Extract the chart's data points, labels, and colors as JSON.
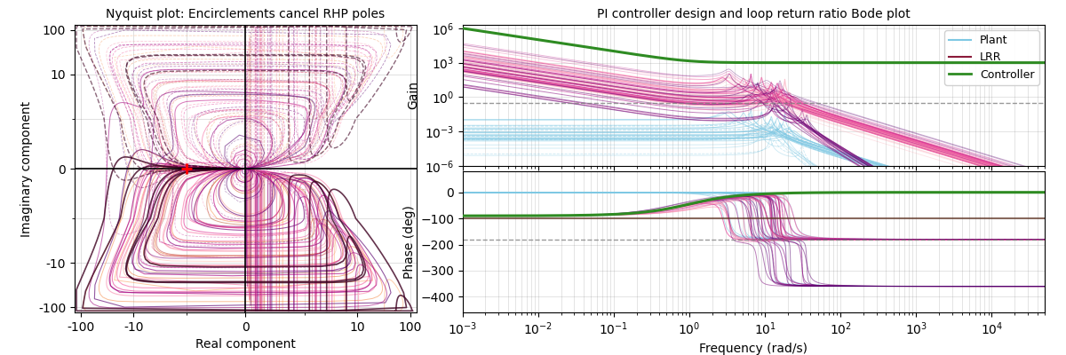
{
  "nyquist_title": "Nyquist plot: Encirclements cancel RHP poles",
  "bode_title": "PI controller design and loop return ratio Bode plot",
  "nyquist_xlabel": "Real component",
  "nyquist_ylabel": "Imaginary component",
  "bode_xlabel": "Frequency (rad/s)",
  "bode_ylabel_gain": "Gain",
  "bode_ylabel_phase": "Phase (deg)",
  "plant_color": "#7EC8E3",
  "controller_color": "#2E8B22",
  "gain_dashed_level": 0.3,
  "phase_dashed_level": -180.0,
  "phase_line2_level": -100.0,
  "bode_freq_min": -3,
  "bode_freq_max": 4.7,
  "bode_gain_ylim_min": 1e-06,
  "bode_gain_ylim_max": 2000000.0,
  "bode_phase_ylim_min": -460,
  "bode_phase_ylim_max": 80,
  "legend_entries": [
    "Plant",
    "LRR",
    "Controller"
  ],
  "legend_plant_color": "#7EC8E3",
  "legend_lrr_color": "#8B1A3A",
  "legend_controller_color": "#2E8B22"
}
